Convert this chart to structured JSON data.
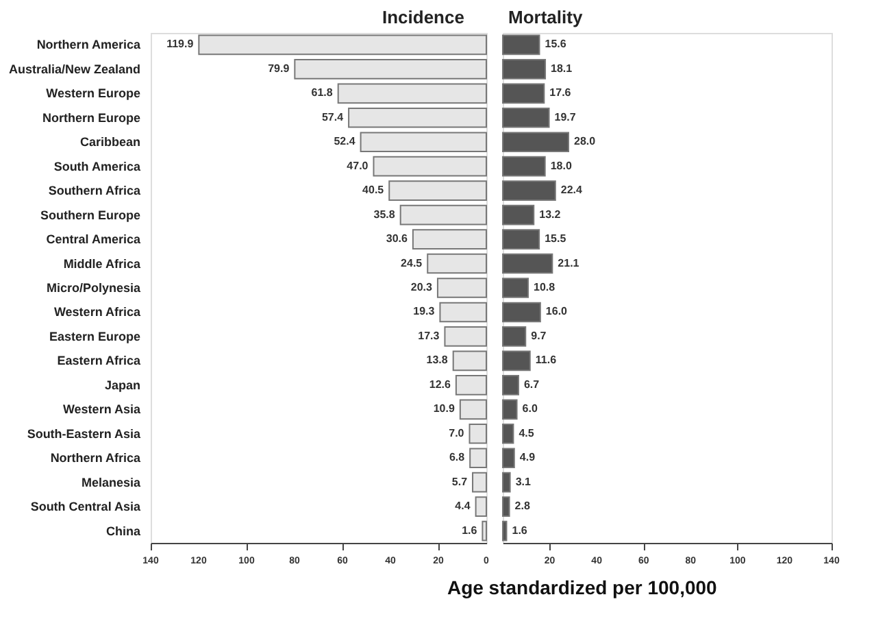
{
  "chart_data": [
    {
      "type": "bar",
      "orientation": "horizontal",
      "title": "Incidence",
      "xlabel": "Age standardized per 100,000",
      "categories": [
        "Northern America",
        "Australia/New Zealand",
        "Western Europe",
        "Northern Europe",
        "Caribbean",
        "South America",
        "Southern Africa",
        "Southern Europe",
        "Central America",
        "Middle Africa",
        "Micro/Polynesia",
        "Western Africa",
        "Eastern Europe",
        "Eastern Africa",
        "Japan",
        "Western Asia",
        "South-Eastern Asia",
        "Northern Africa",
        "Melanesia",
        "South Central Asia",
        "China"
      ],
      "series": [
        {
          "color": "#e6e6e6",
          "values": [
            119.9,
            79.9,
            61.8,
            57.4,
            52.4,
            47.0,
            40.5,
            35.8,
            30.6,
            24.5,
            20.3,
            19.3,
            17.3,
            13.8,
            12.6,
            10.9,
            7.0,
            6.8,
            5.7,
            4.4,
            1.6
          ],
          "value_labels": [
            "119.9",
            "79.9",
            "61.8",
            "57.4",
            "52.4",
            "47.0",
            "40.5",
            "35.8",
            "30.6",
            "24.5",
            "20.3",
            "19.3",
            "17.3",
            "13.8",
            "12.6",
            "10.9",
            "7.0",
            "6.8",
            "5.7",
            "4.4",
            "1.6"
          ]
        }
      ],
      "xlim": [
        140,
        0
      ],
      "xticks": [
        140,
        120,
        100,
        80,
        60,
        40,
        20,
        0
      ]
    },
    {
      "type": "bar",
      "orientation": "horizontal",
      "title": "Mortality",
      "categories": [
        null,
        null,
        null,
        null,
        null,
        null,
        null,
        null,
        null,
        null,
        null,
        null,
        null,
        null,
        null,
        null,
        null,
        null,
        null,
        null,
        null
      ],
      "series": [
        {
          "color": "#555555",
          "values": [
            15.6,
            18.1,
            17.6,
            19.7,
            28.0,
            18.0,
            22.4,
            13.2,
            15.5,
            21.1,
            10.8,
            16.0,
            9.7,
            11.6,
            6.7,
            6.0,
            4.5,
            4.9,
            3.1,
            2.8,
            1.6
          ],
          "value_labels": [
            "15.6",
            "18.1",
            "17.6",
            "19.7",
            "28.0",
            "18.0",
            "22.4",
            "13.2",
            "15.5",
            "21.1",
            "10.8",
            "16.0",
            "9.7",
            "11.6",
            "6.7",
            "6.0",
            "4.5",
            "4.9",
            "3.1",
            "2.8",
            "1.6"
          ]
        }
      ],
      "xlim": [
        0,
        140
      ],
      "xticks": [
        20,
        40,
        60,
        80,
        100,
        120,
        140
      ]
    }
  ]
}
